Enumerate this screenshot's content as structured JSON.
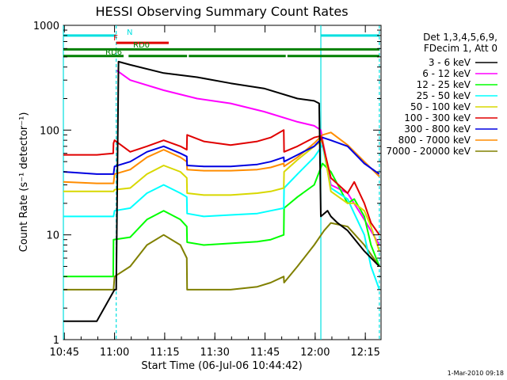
{
  "chart_data": {
    "type": "line",
    "title": "HESSI Observing Summary Count Rates",
    "xlabel": "Start Time (06-Jul-06 10:44:42)",
    "ylabel": "Count Rate (s⁻¹ detector⁻¹)",
    "yscale": "log",
    "ylim": [
      1,
      1000
    ],
    "xlim_minutes": [
      0,
      95
    ],
    "x_unit": "minutes after 10:44:42",
    "xticks": [
      {
        "label": "10:45",
        "value": 0.3
      },
      {
        "label": "11:00",
        "value": 15.3
      },
      {
        "label": "11:15",
        "value": 30.3
      },
      {
        "label": "11:30",
        "value": 45.3
      },
      {
        "label": "11:45",
        "value": 60.3
      },
      {
        "label": "12:00",
        "value": 75.3
      },
      {
        "label": "12:15",
        "value": 90.3
      }
    ],
    "yticks": [
      {
        "label": "1",
        "value": 1
      },
      {
        "label": "10",
        "value": 10
      },
      {
        "label": "100",
        "value": 100
      },
      {
        "label": "1000",
        "value": 1000
      }
    ],
    "grid": false,
    "legend_position": "right",
    "legend_header": [
      "Det 1,3,4,5,6,9,",
      "FDecim 1, Att 0"
    ],
    "footer": "1-Mar-2010 09:18",
    "vertical_markers": [
      {
        "x": 0.0,
        "color": "#00e0e0",
        "style": "solid"
      },
      {
        "x": 15.8,
        "color": "#00e0e0",
        "style": "dashed"
      },
      {
        "x": 77.0,
        "color": "#00e0e0",
        "style": "solid"
      },
      {
        "x": 94.5,
        "color": "#00e0e0",
        "style": "dashed"
      }
    ],
    "flag_bars": [
      {
        "label": "N",
        "color": "#00e0e0",
        "y": 800,
        "segments": [
          [
            0,
            15.8
          ],
          [
            77,
            94.5
          ]
        ]
      },
      {
        "label": "F",
        "color": "#e00000",
        "y": 680,
        "segments": [
          [
            15.8,
            31.5
          ]
        ]
      },
      {
        "label": "RD0",
        "color": "#008000",
        "y": 590,
        "segments": [
          [
            0,
            94.5
          ]
        ]
      },
      {
        "label": "RD6",
        "color": "#008000",
        "y": 510,
        "segments": [
          [
            0,
            18
          ],
          [
            19.5,
            37
          ],
          [
            37.5,
            66.5
          ],
          [
            67,
            94.5
          ]
        ]
      }
    ],
    "series": [
      {
        "name": "3 - 6 keV",
        "color": "#000000",
        "x": [
          0,
          10,
          15.3,
          15.8,
          16.5,
          20,
          30,
          40,
          50,
          60,
          70,
          75,
          76.5,
          77,
          79,
          80,
          82,
          85,
          90,
          94.5
        ],
        "y": [
          1.5,
          1.5,
          3,
          3,
          450,
          420,
          350,
          320,
          280,
          250,
          200,
          190,
          180,
          15,
          17,
          15,
          13,
          11,
          7,
          5
        ]
      },
      {
        "name": "6 - 12 keV",
        "color": "#ff00ff",
        "x": [
          16,
          20,
          30,
          40,
          50,
          60,
          70,
          75,
          77,
          80,
          85,
          90,
          94.5
        ],
        "y": [
          370,
          300,
          240,
          200,
          180,
          150,
          120,
          110,
          100,
          30,
          25,
          14,
          8
        ]
      },
      {
        "name": "12 - 25 keV",
        "color": "#00ff00",
        "x": [
          0,
          10,
          14.9,
          15,
          20,
          25,
          30,
          35,
          36.9,
          37,
          42,
          50,
          58,
          62,
          65.9,
          66,
          70,
          75,
          77.5,
          80,
          85,
          87,
          90,
          92,
          94.5
        ],
        "y": [
          4,
          4,
          4,
          9,
          9.5,
          14,
          17,
          14,
          12,
          8.5,
          8,
          8.3,
          8.6,
          9,
          10,
          18,
          23,
          30,
          48,
          40,
          20,
          22,
          15,
          8,
          5
        ]
      },
      {
        "name": "25 - 50 keV",
        "color": "#00ffff",
        "x": [
          0,
          10,
          15,
          15.3,
          20,
          25,
          30,
          35,
          36.9,
          37,
          42,
          50,
          58,
          62,
          65.9,
          66,
          70,
          75,
          77.5,
          80,
          85,
          87,
          90,
          92,
          94.5
        ],
        "y": [
          15,
          15,
          15,
          17,
          18,
          25,
          30,
          25,
          23,
          16,
          15,
          15.5,
          16,
          17,
          18,
          28,
          38,
          55,
          72,
          28,
          22,
          16,
          10,
          5,
          3
        ]
      },
      {
        "name": "50 - 100 keV",
        "color": "#d8d800",
        "x": [
          0,
          10,
          15,
          15.3,
          20,
          25,
          30,
          35,
          36.9,
          37,
          42,
          50,
          58,
          62,
          65.9,
          66,
          70,
          75,
          77.5,
          80,
          85,
          87,
          90,
          92,
          94.5
        ],
        "y": [
          26,
          26,
          26,
          27,
          28,
          38,
          46,
          40,
          35,
          25,
          24,
          24,
          25,
          26,
          28,
          40,
          52,
          70,
          80,
          26,
          20,
          20,
          17,
          12,
          7
        ]
      },
      {
        "name": "100 - 300 keV",
        "color": "#e00000",
        "x": [
          0,
          10,
          14.9,
          15,
          15.3,
          20,
          25,
          30,
          35,
          36.9,
          37,
          42,
          50,
          58,
          62,
          65.9,
          66,
          70,
          75,
          77,
          80,
          85,
          87,
          90,
          92,
          94.5
        ],
        "y": [
          58,
          58,
          60,
          75,
          80,
          62,
          70,
          80,
          70,
          65,
          90,
          78,
          72,
          78,
          85,
          100,
          62,
          70,
          85,
          88,
          35,
          25,
          32,
          20,
          13,
          10
        ]
      },
      {
        "name": "300 - 800 keV",
        "color": "#0000e0",
        "x": [
          0,
          10,
          15,
          15.3,
          20,
          25,
          30,
          35,
          36.9,
          37,
          42,
          50,
          58,
          62,
          65.9,
          66,
          70,
          75,
          77.5,
          80,
          85,
          90,
          94.5
        ],
        "y": [
          40,
          38,
          38,
          45,
          50,
          62,
          70,
          60,
          56,
          46,
          45,
          45,
          47,
          50,
          55,
          50,
          58,
          70,
          85,
          80,
          70,
          48,
          38
        ]
      },
      {
        "name": "800 - 7000 keV",
        "color": "#ff8c00",
        "x": [
          0,
          10,
          15,
          15.3,
          20,
          25,
          30,
          35,
          36.9,
          37,
          42,
          50,
          58,
          62,
          65.9,
          66,
          70,
          75,
          77.5,
          80,
          85,
          90,
          94.5
        ],
        "y": [
          32,
          31,
          31,
          38,
          42,
          55,
          65,
          55,
          50,
          42,
          41,
          41,
          42,
          44,
          48,
          45,
          55,
          75,
          90,
          95,
          72,
          50,
          36
        ]
      },
      {
        "name": "7000 - 20000 keV",
        "color": "#808000",
        "x": [
          0,
          10,
          15,
          15.3,
          20,
          25,
          30,
          35,
          36.9,
          37,
          42,
          50,
          58,
          62,
          65.9,
          66,
          70,
          75,
          78,
          80,
          85,
          90,
          94.5
        ],
        "y": [
          3,
          3,
          3,
          4,
          5,
          8,
          10,
          8,
          6,
          3,
          3,
          3,
          3.2,
          3.5,
          4,
          3.5,
          5,
          8,
          11,
          13,
          12,
          8,
          5
        ]
      }
    ]
  }
}
